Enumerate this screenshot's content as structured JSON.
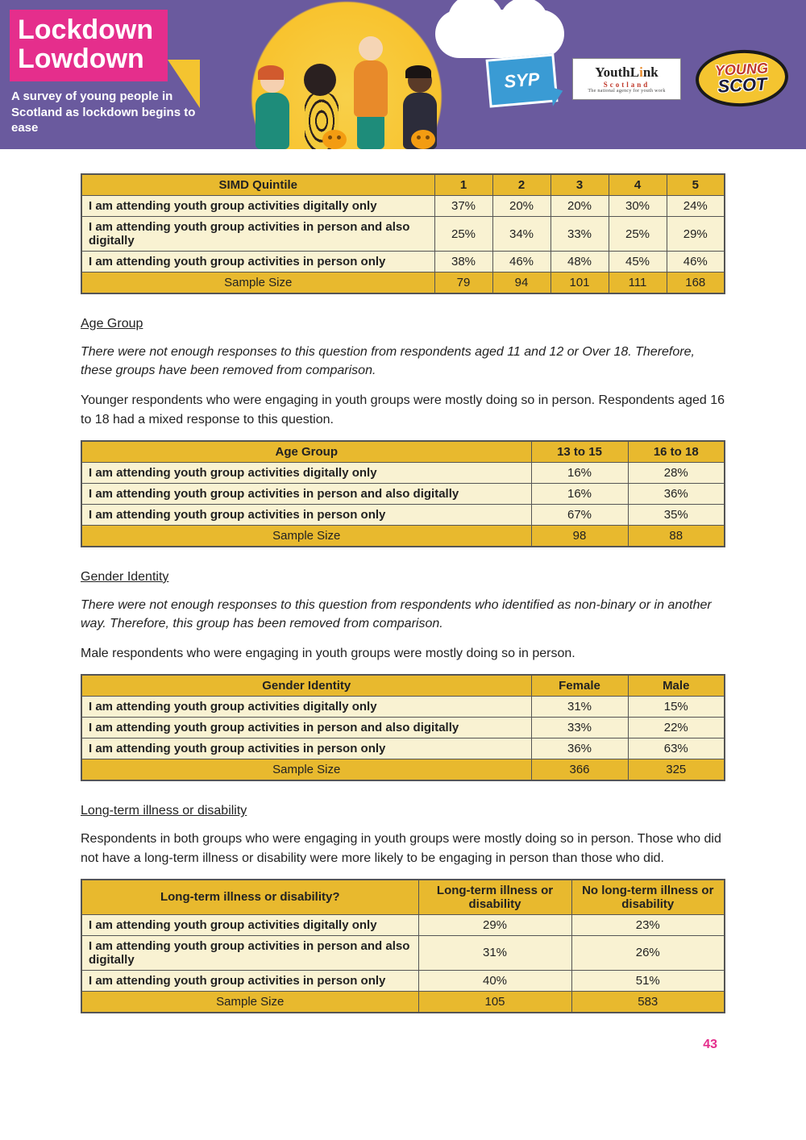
{
  "banner": {
    "title_line1": "Lockdown",
    "title_line2": "Lowdown",
    "subtitle": "A survey of young people in Scotland as lockdown begins to ease",
    "syp_label": "SYP",
    "youthlink_main_a": "YouthL",
    "youthlink_main_b": "nk",
    "youthlink_scot": "Scotland",
    "youthlink_sub": "The national agency for youth work",
    "youngscot_top": "YOUNG",
    "youngscot_bottom": "SCOT",
    "colors": {
      "banner_bg": "#6a5a9e",
      "pink": "#e52e8c",
      "yellow": "#f4c430",
      "table_header": "#e8b92e",
      "table_cell": "#f9f2d2",
      "border": "#555555"
    }
  },
  "tables": {
    "simd": {
      "header_label": "SIMD Quintile",
      "columns": [
        "1",
        "2",
        "3",
        "4",
        "5"
      ],
      "rows": [
        {
          "label": "I am attending youth group activities digitally only",
          "vals": [
            "37%",
            "20%",
            "20%",
            "30%",
            "24%"
          ]
        },
        {
          "label": "I am attending youth group activities in person and also digitally",
          "vals": [
            "25%",
            "34%",
            "33%",
            "25%",
            "29%"
          ]
        },
        {
          "label": "I am attending youth group activities in person only",
          "vals": [
            "38%",
            "46%",
            "48%",
            "45%",
            "46%"
          ]
        }
      ],
      "sample_label": "Sample Size",
      "sample_vals": [
        "79",
        "94",
        "101",
        "111",
        "168"
      ]
    },
    "age": {
      "heading": "Age Group",
      "note": "There were not enough responses to this question from respondents aged 11 and 12 or Over 18. Therefore, these groups have been removed from comparison.",
      "text": "Younger respondents who were engaging in youth groups were mostly doing so in person. Respondents aged 16 to 18 had a mixed response to this question.",
      "header_label": "Age Group",
      "columns": [
        "13 to 15",
        "16 to 18"
      ],
      "rows": [
        {
          "label": "I am attending youth group activities digitally only",
          "vals": [
            "16%",
            "28%"
          ]
        },
        {
          "label": "I am attending youth group activities in person and also digitally",
          "vals": [
            "16%",
            "36%"
          ]
        },
        {
          "label": "I am attending youth group activities in person only",
          "vals": [
            "67%",
            "35%"
          ]
        }
      ],
      "sample_label": "Sample Size",
      "sample_vals": [
        "98",
        "88"
      ]
    },
    "gender": {
      "heading": "Gender Identity",
      "note": "There were not enough responses to this question from respondents who identified as non-binary or in another way. Therefore, this group has been removed from comparison.",
      "text": "Male respondents who were engaging in youth groups were mostly doing so in person.",
      "header_label": "Gender Identity",
      "columns": [
        "Female",
        "Male"
      ],
      "rows": [
        {
          "label": "I am attending youth group activities digitally only",
          "vals": [
            "31%",
            "15%"
          ]
        },
        {
          "label": "I am attending youth group activities in person and also digitally",
          "vals": [
            "33%",
            "22%"
          ]
        },
        {
          "label": "I am attending youth group activities in person only",
          "vals": [
            "36%",
            "63%"
          ]
        }
      ],
      "sample_label": "Sample Size",
      "sample_vals": [
        "366",
        "325"
      ]
    },
    "illness": {
      "heading": "Long-term illness or disability",
      "text": "Respondents in both groups who were engaging in youth groups were mostly doing so in person. Those who did not have a long-term illness or disability were more likely to be engaging in person than those who did.",
      "header_label": "Long-term illness or disability?",
      "columns": [
        "Long-term illness or disability",
        "No long-term illness or disability"
      ],
      "rows": [
        {
          "label": "I am attending youth group activities digitally only",
          "vals": [
            "29%",
            "23%"
          ]
        },
        {
          "label": "I am attending youth group activities in person and also digitally",
          "vals": [
            "31%",
            "26%"
          ]
        },
        {
          "label": "I am attending youth group activities in person only",
          "vals": [
            "40%",
            "51%"
          ]
        }
      ],
      "sample_label": "Sample Size",
      "sample_vals": [
        "105",
        "583"
      ]
    }
  },
  "page_number": "43"
}
